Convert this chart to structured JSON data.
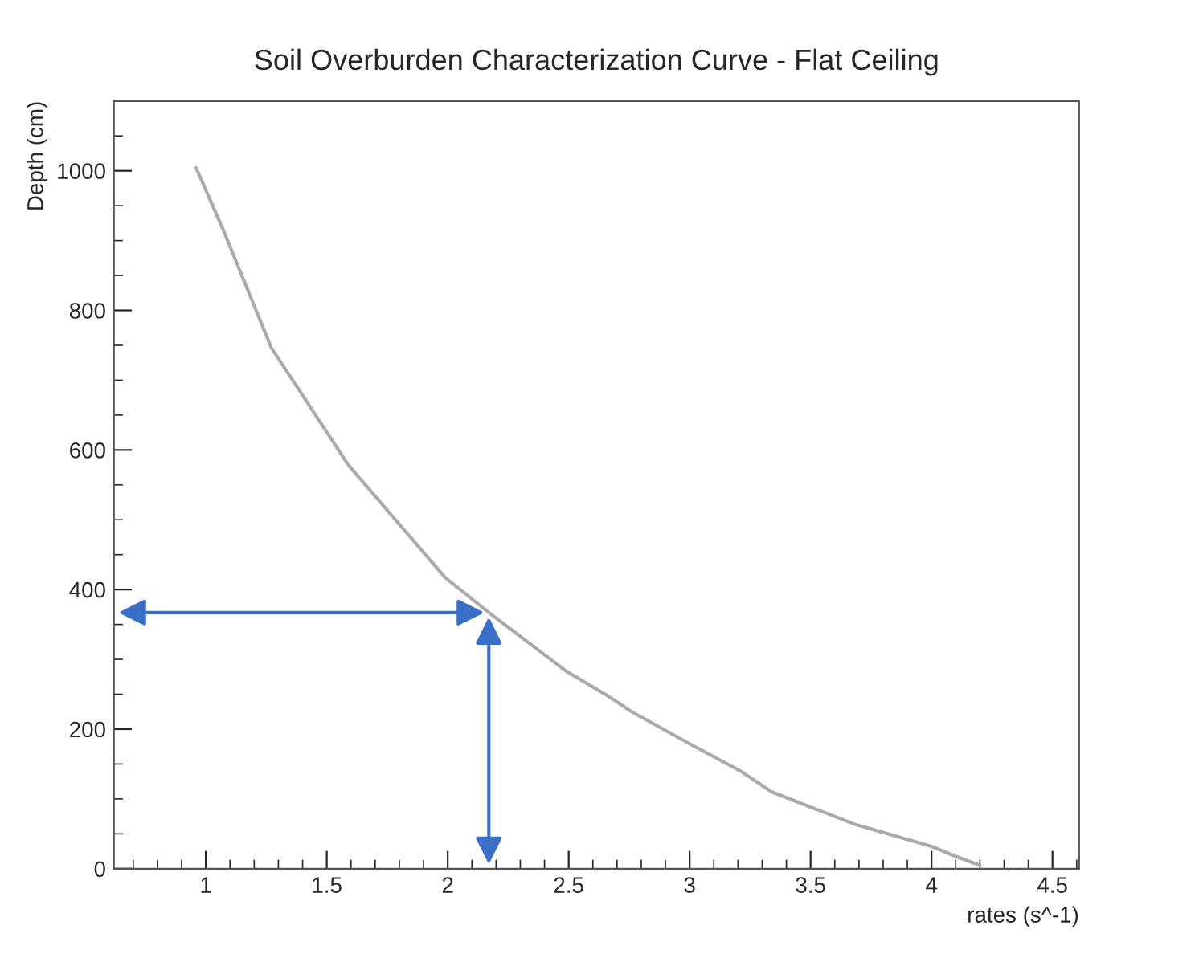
{
  "chart_data": {
    "type": "line",
    "title": "Soil Overburden Characterization Curve - Flat Ceiling",
    "xlabel": "rates (s^-1)",
    "ylabel": "Depth (cm)",
    "x": [
      0.96,
      1.07,
      1.27,
      1.59,
      1.99,
      2.17,
      2.49,
      2.66,
      2.76,
      3.0,
      3.21,
      3.34,
      3.68,
      4.0,
      4.12,
      4.2
    ],
    "series": [
      {
        "color": "#aaaaaa",
        "values": [
          1004,
          917,
          747,
          578,
          417,
          367,
          283,
          248,
          225,
          179,
          140,
          110,
          64,
          32,
          15,
          5
        ]
      }
    ],
    "xlim": [
      0.62,
      4.61
    ],
    "xticks": [
      1,
      1.5,
      2,
      2.5,
      3,
      3.5,
      4,
      4.5
    ],
    "ylim": [
      0,
      1100
    ],
    "yticks": [
      0,
      200,
      400,
      600,
      800,
      1000
    ],
    "marker": "none",
    "line_style": "solid"
  }
}
